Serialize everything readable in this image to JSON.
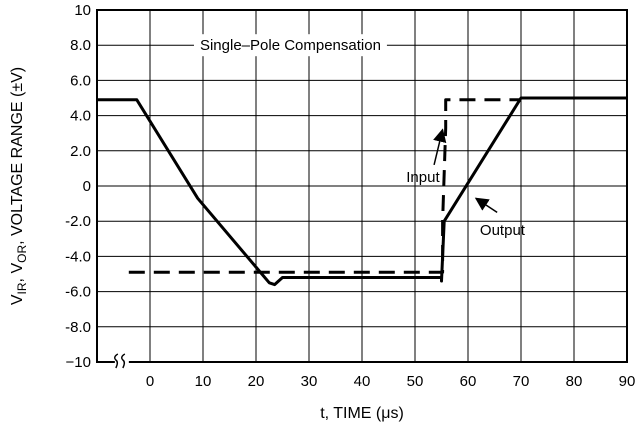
{
  "chart_data": {
    "type": "line",
    "title": "Single–Pole Compensation",
    "xlabel": "t, TIME (μs)",
    "ylabel": "V IR , V OR , VOLTAGE RANGE (±V)",
    "ylabel_parts": {
      "v1": "V",
      "sub1": "IR",
      "sep": ", V",
      "sub2": "OR",
      "rest": ", VOLTAGE RANGE (±V)"
    },
    "xlim": [
      -10,
      90
    ],
    "ylim": [
      -10,
      10
    ],
    "x_ticks": [
      0,
      10,
      20,
      30,
      40,
      50,
      60,
      70,
      80,
      90
    ],
    "x_tick_labels": [
      "0",
      "10",
      "20",
      "30",
      "40",
      "50",
      "60",
      "70",
      "80",
      "90"
    ],
    "y_ticks": [
      10,
      8,
      6,
      4,
      2,
      0,
      -2,
      -4,
      -6,
      -8,
      -10
    ],
    "y_tick_labels": [
      "10",
      "8.0",
      "6.0",
      "4.0",
      "2.0",
      "0",
      "-2.0",
      "-4.0",
      "-6.0",
      "-8.0",
      "−10"
    ],
    "grid": true,
    "axis_break": "x",
    "series": [
      {
        "name": "Input",
        "style": "dashed",
        "x": [
          -4,
          15.5,
          21,
          55.2,
          55.2,
          55.8,
          55.8,
          70
        ],
        "y": [
          -4.9,
          -4.9,
          -4.9,
          -4.9,
          -2,
          3.3,
          4.9,
          4.9
        ]
      },
      {
        "name": "Output",
        "style": "solid",
        "x": [
          -10,
          -2.5,
          9,
          22.5,
          23.5,
          25,
          55,
          55,
          55.5,
          70,
          90
        ],
        "y": [
          4.9,
          4.9,
          -0.7,
          -5.5,
          -5.6,
          -5.2,
          -5.2,
          -5.4,
          -2,
          5,
          5
        ]
      }
    ],
    "annotations": [
      {
        "text": "Input",
        "x": 51.5,
        "y": 0.5,
        "arrow_to": [
          55.2,
          3.2
        ]
      },
      {
        "text": "Output",
        "x": 66.5,
        "y": -2.5,
        "arrow_to": [
          61.5,
          -0.7
        ]
      }
    ]
  }
}
